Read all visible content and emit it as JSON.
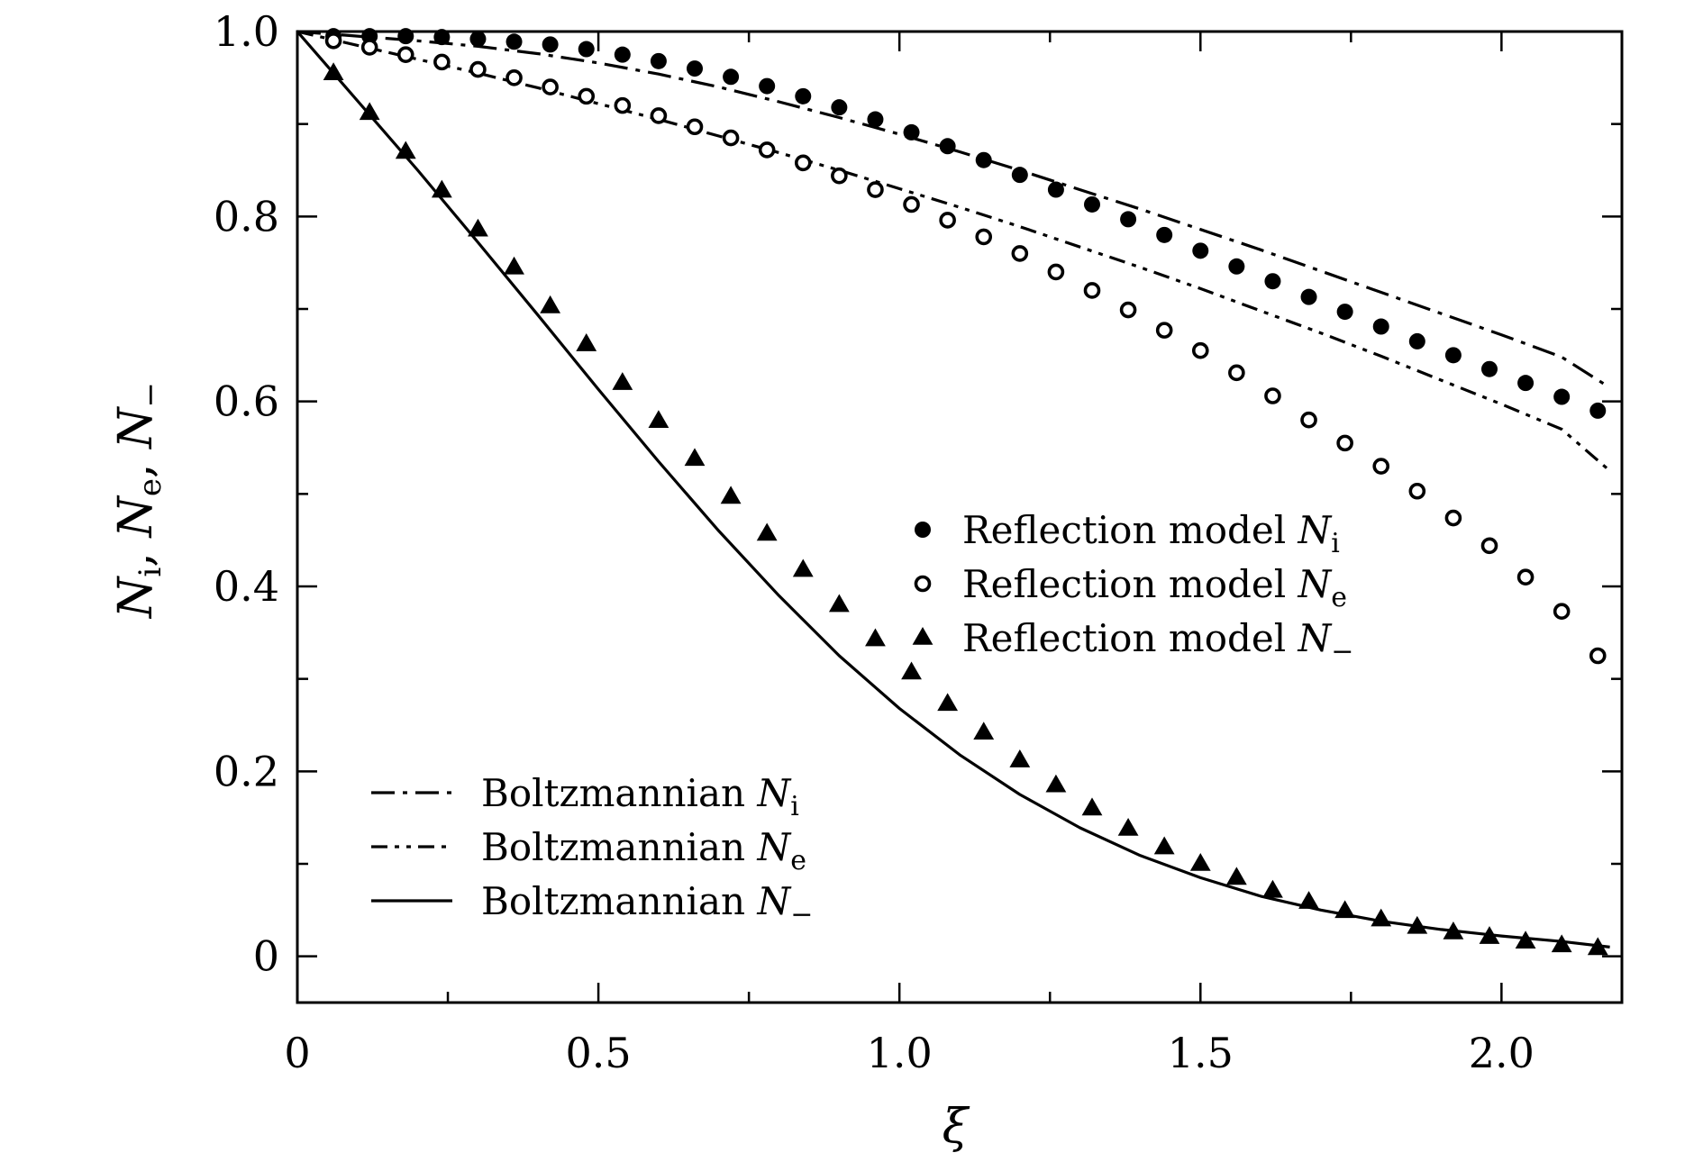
{
  "chart_data": {
    "type": "line",
    "xlabel": "ξ",
    "ylabel": "N_i, N_e, N_−",
    "xlim": [
      0,
      2.2
    ],
    "ylim": [
      -0.05,
      1.0
    ],
    "xticks": [
      {
        "value": 0,
        "label": "0"
      },
      {
        "value": 0.5,
        "label": "0.5"
      },
      {
        "value": 1.0,
        "label": "1.0"
      },
      {
        "value": 1.5,
        "label": "1.5"
      },
      {
        "value": 2.0,
        "label": "2.0"
      }
    ],
    "yticks": [
      {
        "value": 0,
        "label": "0"
      },
      {
        "value": 0.2,
        "label": "0.2"
      },
      {
        "value": 0.4,
        "label": "0.4"
      },
      {
        "value": 0.6,
        "label": "0.6"
      },
      {
        "value": 0.8,
        "label": "0.8"
      },
      {
        "value": 1.0,
        "label": "1.0"
      }
    ],
    "grid": false,
    "series": [
      {
        "name": "Boltzmannian N_i",
        "legend": {
          "base": "Boltzmannian ",
          "var": "N",
          "sub": "i"
        },
        "kind": "line",
        "dash": "dashdot",
        "legend_group": "lines",
        "x": [
          0,
          0.1,
          0.2,
          0.3,
          0.4,
          0.5,
          0.6,
          0.7,
          0.8,
          0.9,
          1.0,
          1.1,
          1.2,
          1.3,
          1.4,
          1.5,
          1.6,
          1.7,
          1.8,
          1.9,
          2.0,
          2.1,
          2.18
        ],
        "y": [
          1.0,
          0.995,
          0.99,
          0.984,
          0.976,
          0.966,
          0.954,
          0.94,
          0.924,
          0.907,
          0.889,
          0.87,
          0.85,
          0.829,
          0.808,
          0.786,
          0.764,
          0.741,
          0.718,
          0.695,
          0.672,
          0.648,
          0.615
        ]
      },
      {
        "name": "Boltzmannian N_e",
        "legend": {
          "base": "Boltzmannian ",
          "var": "N",
          "sub": "e"
        },
        "kind": "line",
        "dash": "dashdotdot",
        "legend_group": "lines",
        "x": [
          0,
          0.1,
          0.2,
          0.3,
          0.4,
          0.5,
          0.6,
          0.7,
          0.8,
          0.9,
          1.0,
          1.1,
          1.2,
          1.3,
          1.4,
          1.5,
          1.6,
          1.7,
          1.8,
          1.9,
          2.0,
          2.1,
          2.18
        ],
        "y": [
          1.0,
          0.985,
          0.97,
          0.955,
          0.939,
          0.922,
          0.905,
          0.887,
          0.869,
          0.85,
          0.83,
          0.81,
          0.789,
          0.767,
          0.745,
          0.722,
          0.698,
          0.674,
          0.649,
          0.623,
          0.597,
          0.57,
          0.525
        ]
      },
      {
        "name": "Boltzmannian N_−",
        "legend": {
          "base": "Boltzmannian ",
          "var": "N",
          "sub": "−"
        },
        "kind": "line",
        "dash": "solid",
        "legend_group": "lines",
        "x": [
          0,
          0.1,
          0.2,
          0.3,
          0.4,
          0.5,
          0.6,
          0.7,
          0.8,
          0.9,
          1.0,
          1.1,
          1.2,
          1.3,
          1.4,
          1.5,
          1.6,
          1.7,
          1.8,
          1.9,
          2.0,
          2.1,
          2.18
        ],
        "y": [
          1.0,
          0.925,
          0.85,
          0.772,
          0.693,
          0.613,
          0.535,
          0.46,
          0.39,
          0.325,
          0.268,
          0.218,
          0.175,
          0.139,
          0.109,
          0.085,
          0.065,
          0.05,
          0.038,
          0.029,
          0.022,
          0.016,
          0.01
        ]
      },
      {
        "name": "Reflection model N_i",
        "legend": {
          "base": "Reflection model ",
          "var": "N",
          "sub": "i"
        },
        "kind": "scatter",
        "marker": "filled-circle",
        "legend_group": "markers",
        "x": [
          0.06,
          0.12,
          0.18,
          0.24,
          0.3,
          0.36,
          0.42,
          0.48,
          0.54,
          0.6,
          0.66,
          0.72,
          0.78,
          0.84,
          0.9,
          0.96,
          1.02,
          1.08,
          1.14,
          1.2,
          1.26,
          1.32,
          1.38,
          1.44,
          1.5,
          1.56,
          1.62,
          1.68,
          1.74,
          1.8,
          1.86,
          1.92,
          1.98,
          2.04,
          2.1,
          2.16
        ],
        "y": [
          0.995,
          0.995,
          0.995,
          0.994,
          0.992,
          0.989,
          0.986,
          0.981,
          0.975,
          0.968,
          0.96,
          0.951,
          0.941,
          0.93,
          0.918,
          0.905,
          0.891,
          0.876,
          0.861,
          0.845,
          0.829,
          0.813,
          0.797,
          0.78,
          0.763,
          0.746,
          0.73,
          0.713,
          0.697,
          0.681,
          0.665,
          0.65,
          0.635,
          0.62,
          0.605,
          0.59
        ]
      },
      {
        "name": "Reflection model N_e",
        "legend": {
          "base": "Reflection model ",
          "var": "N",
          "sub": "e"
        },
        "kind": "scatter",
        "marker": "open-circle",
        "legend_group": "markers",
        "x": [
          0.06,
          0.12,
          0.18,
          0.24,
          0.3,
          0.36,
          0.42,
          0.48,
          0.54,
          0.6,
          0.66,
          0.72,
          0.78,
          0.84,
          0.9,
          0.96,
          1.02,
          1.08,
          1.14,
          1.2,
          1.26,
          1.32,
          1.38,
          1.44,
          1.5,
          1.56,
          1.62,
          1.68,
          1.74,
          1.8,
          1.86,
          1.92,
          1.98,
          2.04,
          2.1,
          2.16
        ],
        "y": [
          0.99,
          0.983,
          0.975,
          0.967,
          0.959,
          0.95,
          0.94,
          0.93,
          0.92,
          0.909,
          0.897,
          0.885,
          0.872,
          0.858,
          0.844,
          0.829,
          0.813,
          0.796,
          0.778,
          0.76,
          0.74,
          0.72,
          0.699,
          0.677,
          0.655,
          0.631,
          0.606,
          0.58,
          0.555,
          0.53,
          0.503,
          0.474,
          0.444,
          0.41,
          0.373,
          0.325
        ]
      },
      {
        "name": "Reflection model N_−",
        "legend": {
          "base": "Reflection model ",
          "var": "N",
          "sub": "−"
        },
        "kind": "scatter",
        "marker": "filled-triangle",
        "legend_group": "markers",
        "x": [
          0.06,
          0.12,
          0.18,
          0.24,
          0.3,
          0.36,
          0.42,
          0.48,
          0.54,
          0.6,
          0.66,
          0.72,
          0.78,
          0.84,
          0.9,
          0.96,
          1.02,
          1.08,
          1.14,
          1.2,
          1.26,
          1.32,
          1.38,
          1.44,
          1.5,
          1.56,
          1.62,
          1.68,
          1.74,
          1.8,
          1.86,
          1.92,
          1.98,
          2.04,
          2.1,
          2.16
        ],
        "y": [
          0.955,
          0.912,
          0.87,
          0.828,
          0.786,
          0.745,
          0.703,
          0.662,
          0.62,
          0.579,
          0.538,
          0.497,
          0.457,
          0.418,
          0.38,
          0.343,
          0.307,
          0.273,
          0.242,
          0.212,
          0.185,
          0.16,
          0.138,
          0.118,
          0.1,
          0.085,
          0.071,
          0.059,
          0.049,
          0.04,
          0.032,
          0.026,
          0.021,
          0.016,
          0.012,
          0.009
        ]
      }
    ]
  }
}
